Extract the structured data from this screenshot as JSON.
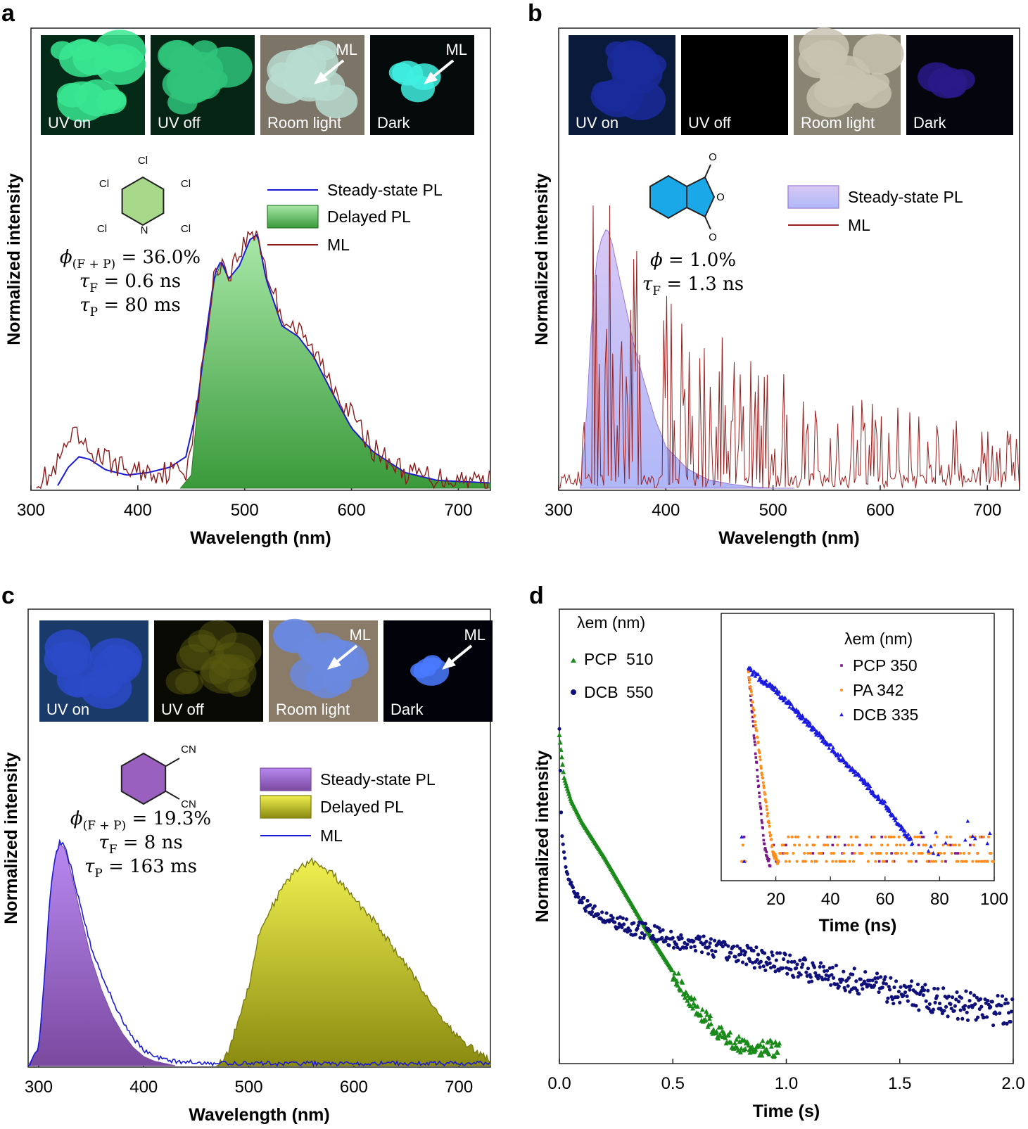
{
  "panels": {
    "a": {
      "label": "a",
      "photos": [
        {
          "label": "UV on",
          "bg": "#062a18",
          "glow": "#38e890"
        },
        {
          "label": "UV off",
          "bg": "#052414",
          "glow": "#2fc47a"
        },
        {
          "label": "Room light",
          "bg": "#7d7468",
          "glow": "#b8dcd0",
          "ml": "ML"
        },
        {
          "label": "Dark",
          "bg": "#050a0a",
          "glow": "#40f0e0",
          "ml": "ML"
        }
      ],
      "molecule_atoms": [
        "Cl",
        "Cl",
        "Cl",
        "Cl",
        "Cl",
        "N"
      ],
      "annotations": [
        "ϕ(F + P) = 36.0%",
        "τF = 0.6 ns",
        "τP = 80 ms"
      ],
      "legend": [
        "Steady-state PL",
        "Delayed PL",
        "ML"
      ],
      "colors": {
        "steady": "#1a1ad6",
        "delayed": "#5cc15c",
        "ml": "#8b1a1a",
        "molecule": "#a8d88a"
      }
    },
    "b": {
      "label": "b",
      "photos": [
        {
          "label": "UV on",
          "bg": "#0a1a3a",
          "glow": "#1a2a9a"
        },
        {
          "label": "UV off",
          "bg": "#000000",
          "glow": "#000000"
        },
        {
          "label": "Room light",
          "bg": "#8a8474",
          "glow": "#c8c2b0"
        },
        {
          "label": "Dark",
          "bg": "#05050d",
          "glow": "#2a1a8a"
        }
      ],
      "molecule_atoms": [
        "O",
        "O",
        "O"
      ],
      "annotations": [
        "ϕ = 1.0%",
        "τF = 1.3 ns"
      ],
      "legend": [
        "Steady-state PL",
        "ML"
      ],
      "colors": {
        "steady": "#c8b8f0",
        "ml": "#9a2020",
        "molecule": "#1aa8e8"
      }
    },
    "c": {
      "label": "c",
      "photos": [
        {
          "label": "UV on",
          "bg": "#1a3a6a",
          "glow": "#2a4ac8"
        },
        {
          "label": "UV off",
          "bg": "#0a0a05",
          "glow": "#5a5a10"
        },
        {
          "label": "Room light",
          "bg": "#8a7a68",
          "glow": "#6a8ae0",
          "ml": "ML"
        },
        {
          "label": "Dark",
          "bg": "#02030a",
          "glow": "#4a7aff",
          "ml": "ML"
        }
      ],
      "molecule_atoms": [
        "CN",
        "CN"
      ],
      "annotations": [
        "ϕ(F + P) = 19.3%",
        "τF = 8 ns",
        "τP = 163 ms"
      ],
      "legend": [
        "Steady-state PL",
        "Delayed PL",
        "ML"
      ],
      "colors": {
        "steady": "#a068d8",
        "delayed": "#d8d830",
        "ml": "#1a1ad6",
        "molecule": "#9a60c0"
      }
    },
    "d": {
      "label": "d",
      "legend_title": "λem (nm)",
      "legend": [
        {
          "name": "PCP",
          "value": "510"
        },
        {
          "name": "DCB",
          "value": "550"
        }
      ],
      "inset_legend_title": "λem (nm)",
      "inset_legend": [
        {
          "name": "PCP",
          "value": "350"
        },
        {
          "name": "PA",
          "value": "342"
        },
        {
          "name": "DCB",
          "value": "335"
        }
      ],
      "colors": {
        "pcp": "#1a8a1a",
        "dcb": "#10107a",
        "inset_pcp": "#7a1a8a",
        "inset_pa": "#ff8c1a",
        "inset_dcb": "#1a1ae0"
      }
    }
  },
  "chart_data": [
    {
      "panel": "a",
      "type": "area",
      "xlabel": "Wavelength (nm)",
      "ylabel": "Normalized intensity",
      "xlim": [
        300,
        730
      ],
      "xticks": [
        300,
        400,
        500,
        600,
        700
      ],
      "series": [
        {
          "name": "Steady-state PL",
          "style": "line",
          "x": [
            325,
            335,
            345,
            355,
            370,
            390,
            410,
            430,
            445,
            455,
            465,
            472,
            478,
            485,
            495,
            505,
            512,
            520,
            535,
            550,
            565,
            580,
            600,
            620,
            650,
            680,
            730
          ],
          "y": [
            0.01,
            0.08,
            0.12,
            0.11,
            0.07,
            0.05,
            0.06,
            0.08,
            0.12,
            0.3,
            0.62,
            0.82,
            0.87,
            0.8,
            0.85,
            0.95,
            0.97,
            0.8,
            0.62,
            0.58,
            0.5,
            0.38,
            0.23,
            0.14,
            0.06,
            0.03,
            0.02
          ]
        },
        {
          "name": "Delayed PL",
          "style": "area",
          "x": [
            440,
            450,
            458,
            465,
            472,
            478,
            485,
            495,
            505,
            512,
            520,
            535,
            550,
            565,
            580,
            600,
            620,
            650,
            680,
            730
          ],
          "y": [
            0.0,
            0.05,
            0.4,
            0.6,
            0.8,
            0.86,
            0.8,
            0.85,
            0.95,
            0.97,
            0.8,
            0.62,
            0.58,
            0.5,
            0.38,
            0.23,
            0.14,
            0.06,
            0.03,
            0.02
          ]
        },
        {
          "name": "ML",
          "style": "noisy",
          "x": [
            305,
            320,
            335,
            342,
            350,
            360,
            375,
            390,
            420,
            445,
            455,
            465,
            472,
            478,
            485,
            495,
            505,
            512,
            520,
            535,
            550,
            565,
            580,
            600,
            620,
            650,
            680,
            730
          ],
          "y": [
            0.03,
            0.05,
            0.17,
            0.2,
            0.15,
            0.13,
            0.1,
            0.07,
            0.06,
            0.07,
            0.3,
            0.6,
            0.82,
            0.87,
            0.82,
            0.9,
            0.97,
            0.98,
            0.83,
            0.66,
            0.6,
            0.52,
            0.42,
            0.28,
            0.15,
            0.06,
            0.04,
            0.03
          ]
        }
      ]
    },
    {
      "panel": "b",
      "type": "area",
      "xlabel": "Wavelength (nm)",
      "ylabel": "Normalized intensity",
      "xlim": [
        300,
        730
      ],
      "xticks": [
        300,
        400,
        500,
        600,
        700
      ],
      "series": [
        {
          "name": "Steady-state PL",
          "style": "area",
          "x": [
            320,
            325,
            330,
            335,
            340,
            345,
            350,
            360,
            370,
            380,
            390,
            400,
            420,
            440,
            460,
            480,
            500,
            520
          ],
          "y": [
            0.0,
            0.2,
            0.55,
            0.82,
            0.9,
            0.94,
            0.88,
            0.7,
            0.52,
            0.38,
            0.25,
            0.15,
            0.07,
            0.03,
            0.015,
            0.005,
            0.0,
            0.0
          ]
        },
        {
          "name": "ML",
          "style": "spiky",
          "x": [
            300,
            318,
            325,
            335,
            345,
            360,
            380,
            400,
            430,
            460,
            500,
            550,
            600,
            650,
            700,
            730
          ],
          "y": [
            0.0,
            0.02,
            0.35,
            0.65,
            0.58,
            0.45,
            0.38,
            0.32,
            0.28,
            0.24,
            0.2,
            0.16,
            0.14,
            0.12,
            0.1,
            0.1
          ]
        }
      ]
    },
    {
      "panel": "c",
      "type": "area",
      "xlabel": "Wavelength (nm)",
      "ylabel": "Normalized intensity",
      "xlim": [
        290,
        730
      ],
      "xticks": [
        300,
        400,
        500,
        600,
        700
      ],
      "series": [
        {
          "name": "Steady-state PL",
          "style": "area",
          "x": [
            290,
            300,
            305,
            310,
            315,
            320,
            325,
            330,
            340,
            350,
            360,
            370,
            380,
            390,
            400,
            410,
            420,
            430
          ],
          "y": [
            0.0,
            0.08,
            0.35,
            0.7,
            0.9,
            0.97,
            0.95,
            0.86,
            0.66,
            0.47,
            0.33,
            0.22,
            0.14,
            0.08,
            0.04,
            0.02,
            0.01,
            0.0
          ]
        },
        {
          "name": "Delayed PL",
          "style": "noisy-area",
          "x": [
            470,
            480,
            490,
            500,
            510,
            520,
            530,
            540,
            550,
            560,
            570,
            580,
            600,
            620,
            640,
            660,
            680,
            700,
            720,
            730
          ],
          "y": [
            0.0,
            0.05,
            0.2,
            0.35,
            0.58,
            0.68,
            0.76,
            0.83,
            0.87,
            0.9,
            0.86,
            0.84,
            0.73,
            0.63,
            0.5,
            0.37,
            0.23,
            0.12,
            0.05,
            0.03
          ]
        },
        {
          "name": "ML",
          "style": "noisy",
          "x": [
            290,
            300,
            305,
            310,
            315,
            320,
            325,
            330,
            340,
            350,
            360,
            370,
            380,
            390,
            400,
            410,
            430,
            460,
            500,
            600,
            730
          ],
          "y": [
            0.0,
            0.08,
            0.35,
            0.7,
            0.9,
            0.98,
            0.96,
            0.88,
            0.7,
            0.52,
            0.4,
            0.29,
            0.2,
            0.12,
            0.07,
            0.04,
            0.02,
            0.01,
            0.01,
            0.01,
            0.01
          ]
        }
      ]
    },
    {
      "panel": "d",
      "type": "scatter",
      "xlabel": "Time (s)",
      "ylabel": "Normalized intensity",
      "xlim": [
        0,
        2
      ],
      "xticks": [
        0.0,
        0.5,
        1.0,
        1.5,
        2.0
      ],
      "ylog": true,
      "series": [
        {
          "name": "PCP 510",
          "marker": "triangle",
          "x": [
            0.0,
            0.02,
            0.05,
            0.1,
            0.2,
            0.3,
            0.4,
            0.5,
            0.6,
            0.7,
            0.8,
            0.95
          ],
          "y": [
            1.0,
            0.87,
            0.8,
            0.73,
            0.62,
            0.5,
            0.38,
            0.27,
            0.16,
            0.08,
            0.04,
            0.03
          ]
        },
        {
          "name": "DCB 550",
          "marker": "circle",
          "x": [
            0.0,
            0.01,
            0.03,
            0.06,
            0.1,
            0.2,
            0.3,
            0.5,
            0.7,
            1.0,
            1.3,
            1.6,
            1.9,
            2.0
          ],
          "y": [
            1.02,
            0.7,
            0.58,
            0.52,
            0.48,
            0.44,
            0.41,
            0.37,
            0.34,
            0.29,
            0.24,
            0.19,
            0.15,
            0.14
          ]
        }
      ],
      "inset": {
        "type": "scatter",
        "xlabel": "Time (ns)",
        "xlim": [
          0,
          100
        ],
        "xticks": [
          20,
          40,
          60,
          80,
          100
        ],
        "ylog": true,
        "series": [
          {
            "name": "PCP 350",
            "marker": "square",
            "x": [
              7,
              9,
              10,
              12,
              14,
              16,
              18,
              100
            ],
            "y": [
              0.05,
              0.5,
              1.0,
              0.68,
              0.38,
              0.12,
              0.04,
              0.04
            ]
          },
          {
            "name": "PA 342",
            "marker": "circle",
            "x": [
              7,
              9,
              10,
              13,
              16,
              19,
              21,
              100
            ],
            "y": [
              0.05,
              0.55,
              0.98,
              0.7,
              0.38,
              0.1,
              0.05,
              0.05
            ]
          },
          {
            "name": "DCB 335",
            "marker": "triangle",
            "x": [
              7,
              9,
              10,
              20,
              30,
              40,
              50,
              60,
              70,
              100
            ],
            "y": [
              0.05,
              0.6,
              1.0,
              0.9,
              0.76,
              0.62,
              0.48,
              0.34,
              0.15,
              0.15
            ]
          }
        ]
      }
    }
  ]
}
